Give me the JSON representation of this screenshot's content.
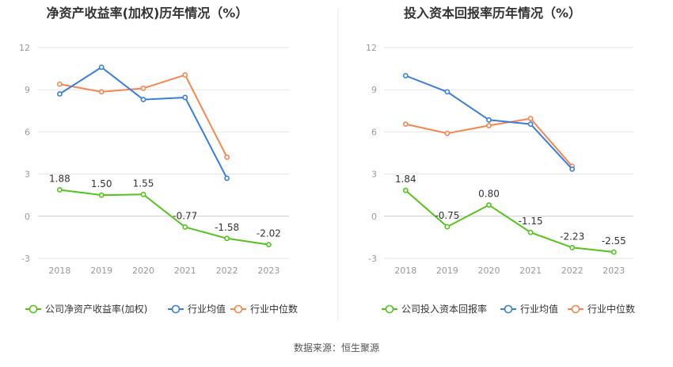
{
  "colors": {
    "company": "#52c41a",
    "avg": "#3b7ddd",
    "median": "#f5864f",
    "grid": "#e6e6e6",
    "axis": "#999999",
    "divider": "#e8e8e8"
  },
  "source_text": "数据来源：恒生聚源",
  "chart_data": [
    {
      "type": "line",
      "title": "净资产收益率(加权)历年情况（%）",
      "categories": [
        "2018",
        "2019",
        "2020",
        "2021",
        "2022",
        "2023"
      ],
      "ylim": [
        -3,
        12
      ],
      "yticks": [
        "-3",
        "0",
        "3",
        "6",
        "9",
        "12"
      ],
      "grid": true,
      "legend_position": "bottom",
      "series": [
        {
          "name": "公司净资产收益率(加权)",
          "color_key": "company",
          "values": [
            1.88,
            1.5,
            1.55,
            -0.77,
            -1.58,
            -2.02
          ],
          "labels": [
            "1.88",
            "1.50",
            "1.55",
            "-0.77",
            "-1.58",
            "-2.02"
          ]
        },
        {
          "name": "行业均值",
          "color_key": "avg",
          "values": [
            8.7,
            10.6,
            8.3,
            8.45,
            2.7,
            null
          ]
        },
        {
          "name": "行业中位数",
          "color_key": "median",
          "values": [
            9.4,
            8.85,
            9.1,
            10.05,
            4.2,
            null
          ]
        }
      ]
    },
    {
      "type": "line",
      "title": "投入资本回报率历年情况（%）",
      "categories": [
        "2018",
        "2019",
        "2020",
        "2021",
        "2022",
        "2023"
      ],
      "ylim": [
        -3,
        12
      ],
      "yticks": [
        "-3",
        "0",
        "3",
        "6",
        "9",
        "12"
      ],
      "grid": true,
      "legend_position": "bottom",
      "series": [
        {
          "name": "公司投入资本回报率",
          "color_key": "company",
          "values": [
            1.84,
            -0.75,
            0.8,
            -1.15,
            -2.23,
            -2.55
          ],
          "labels": [
            "1.84",
            "-0.75",
            "0.80",
            "-1.15",
            "-2.23",
            "-2.55"
          ]
        },
        {
          "name": "行业均值",
          "color_key": "avg",
          "values": [
            10.0,
            8.85,
            6.85,
            6.55,
            3.35,
            null
          ]
        },
        {
          "name": "行业中位数",
          "color_key": "median",
          "values": [
            6.55,
            5.9,
            6.45,
            6.95,
            3.55,
            null
          ]
        }
      ]
    }
  ]
}
